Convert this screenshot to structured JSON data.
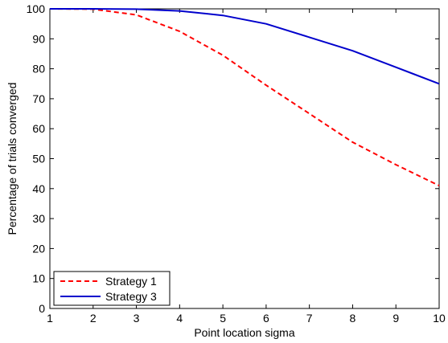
{
  "chart_data": {
    "type": "line",
    "title": "",
    "xlabel": "Point location sigma",
    "ylabel": "Percentage of trials converged",
    "xlim": [
      1,
      10
    ],
    "ylim": [
      0,
      100
    ],
    "xticks": [
      "1",
      "2",
      "3",
      "4",
      "5",
      "6",
      "7",
      "8",
      "9",
      "10"
    ],
    "yticks": [
      "0",
      "10",
      "20",
      "30",
      "40",
      "50",
      "60",
      "70",
      "80",
      "90",
      "100"
    ],
    "grid": false,
    "legend_position": "bottom-left",
    "x": [
      1,
      2,
      3,
      4,
      5,
      6,
      7,
      8,
      9,
      10
    ],
    "series": [
      {
        "name": "Strategy 1",
        "color": "#ff0000",
        "style": "dashed",
        "values": [
          100,
          99.9,
          98.0,
          92.5,
          84.5,
          74.5,
          65.0,
          55.5,
          48.0,
          41.0
        ]
      },
      {
        "name": "Strategy 3",
        "color": "#0000cc",
        "style": "solid",
        "values": [
          100,
          100,
          99.9,
          99.3,
          97.8,
          95.0,
          90.5,
          86.0,
          80.5,
          75.0
        ]
      }
    ]
  }
}
